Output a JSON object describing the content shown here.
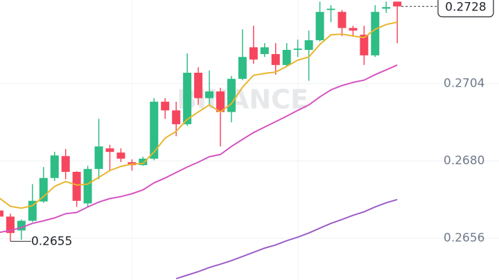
{
  "chart_data": {
    "type": "candlestick",
    "watermark": "BINANCE",
    "open": [
      0.26646,
      0.26627,
      0.26584,
      0.26614,
      0.26674,
      0.26747,
      0.26815,
      0.26766,
      0.26668,
      0.26775,
      0.26839,
      0.26826,
      0.26796,
      0.26787,
      0.26807,
      0.26984,
      0.26957,
      0.26914,
      0.27074,
      0.26995,
      0.27016,
      0.26952,
      0.27055,
      0.27153,
      0.27132,
      0.27132,
      0.27098,
      0.27145,
      0.27145,
      0.27175,
      0.27269,
      0.27263,
      0.27213,
      0.27192,
      0.27128,
      0.27273,
      0.27295
    ],
    "high": [
      0.26657,
      0.26636,
      0.26618,
      0.26728,
      0.26781,
      0.26828,
      0.26837,
      0.26768,
      0.26785,
      0.26931,
      0.2685,
      0.26839,
      0.26805,
      0.26813,
      0.26995,
      0.26995,
      0.26984,
      0.27134,
      0.27091,
      0.27081,
      0.27027,
      0.27064,
      0.27209,
      0.2722,
      0.27166,
      0.27166,
      0.27166,
      0.27177,
      0.27205,
      0.27295,
      0.27284,
      0.27269,
      0.2722,
      0.2722,
      0.27284,
      0.27295,
      0.27295
    ],
    "low": [
      0.26621,
      0.2655,
      0.26555,
      0.2661,
      0.2667,
      0.26738,
      0.26743,
      0.26657,
      0.26657,
      0.26743,
      0.2677,
      0.26796,
      0.2677,
      0.26785,
      0.26802,
      0.26931,
      0.26877,
      0.26909,
      0.26974,
      0.26974,
      0.26845,
      0.2692,
      0.27051,
      0.27102,
      0.27123,
      0.27068,
      0.27091,
      0.27123,
      0.27049,
      0.27171,
      0.27231,
      0.27188,
      0.27188,
      0.27098,
      0.27123,
      0.2726,
      0.27166
    ],
    "close": [
      0.26627,
      0.26576,
      0.26614,
      0.26676,
      0.26747,
      0.26817,
      0.26766,
      0.26676,
      0.26775,
      0.26845,
      0.26828,
      0.26807,
      0.26787,
      0.26807,
      0.26984,
      0.26957,
      0.26914,
      0.27074,
      0.26995,
      0.27016,
      0.26952,
      0.27055,
      0.27123,
      0.27115,
      0.27153,
      0.27098,
      0.27145,
      0.27149,
      0.27175,
      0.27263,
      0.27273,
      0.27213,
      0.27205,
      0.27128,
      0.27263,
      0.27278,
      0.2728
    ],
    "up_color": "#2ebd85",
    "down_color": "#f6465d",
    "series": [
      {
        "color": "#e9b52c",
        "values": [
          0.26685,
          0.26659,
          0.26653,
          0.26661,
          0.26689,
          0.26721,
          0.26736,
          0.26725,
          0.26728,
          0.26749,
          0.2677,
          0.26783,
          0.2679,
          0.26792,
          0.26828,
          0.26871,
          0.26892,
          0.26929,
          0.26952,
          0.26974,
          0.26952,
          0.26978,
          0.27029,
          0.27066,
          0.27072,
          0.27076,
          0.27094,
          0.27113,
          0.27123,
          0.27162,
          0.27192,
          0.27194,
          0.27188,
          0.27183,
          0.27209,
          0.27224,
          0.27231
        ]
      },
      {
        "color": "#d452c0",
        "values": [
          0.26578,
          0.26584,
          0.26593,
          0.26606,
          0.26614,
          0.26623,
          0.26636,
          0.2664,
          0.26657,
          0.26672,
          0.26683,
          0.26689,
          0.26698,
          0.2671,
          0.26732,
          0.26747,
          0.26764,
          0.26781,
          0.26796,
          0.26813,
          0.2682,
          0.26845,
          0.26867,
          0.26888,
          0.26905,
          0.26922,
          0.26939,
          0.26957,
          0.26974,
          0.26999,
          0.27021,
          0.27034,
          0.27044,
          0.27051,
          0.27068,
          0.27083,
          0.27098
        ]
      },
      {
        "color": "#9a5cc8",
        "values": [
          null,
          null,
          null,
          null,
          null,
          null,
          null,
          null,
          null,
          null,
          null,
          null,
          null,
          null,
          null,
          null,
          0.26434,
          0.26445,
          0.26456,
          0.26469,
          0.26479,
          0.2649,
          0.26503,
          0.26516,
          0.26529,
          0.26539,
          0.26552,
          0.26563,
          0.26576,
          0.26591,
          0.26606,
          0.26618,
          0.26631,
          0.26642,
          0.26657,
          0.2667,
          0.2668
        ]
      }
    ],
    "ylim": [
      0.2643,
      0.273
    ],
    "yticks": [
      0.2656,
      {
        "value": 0.268,
        "label": "0.2680"
      },
      0.2704
    ],
    "grid": true
  }
}
